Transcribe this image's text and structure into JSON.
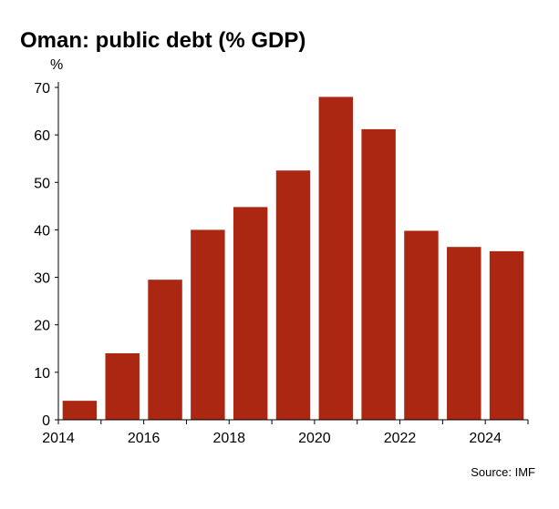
{
  "chart_data": {
    "type": "bar",
    "title": "Oman: public debt (% GDP)",
    "ylabel": "%",
    "xlabel": "",
    "source": "Source: IMF",
    "categories": [
      "2014",
      "2015",
      "2016",
      "2017",
      "2018",
      "2019",
      "2020",
      "2021",
      "2022",
      "2023",
      "2024"
    ],
    "values": [
      4.0,
      14.0,
      29.5,
      40.0,
      44.8,
      52.5,
      68.0,
      61.2,
      39.8,
      36.4,
      35.5
    ],
    "ylim": [
      0,
      70
    ],
    "yticks": [
      "0",
      "10",
      "20",
      "30",
      "40",
      "50",
      "60",
      "70"
    ],
    "xtick_labels": [
      "2014",
      "2016",
      "2018",
      "2020",
      "2022",
      "2024"
    ],
    "grid": false,
    "legend": "none",
    "bar_color": "#ab2712"
  }
}
